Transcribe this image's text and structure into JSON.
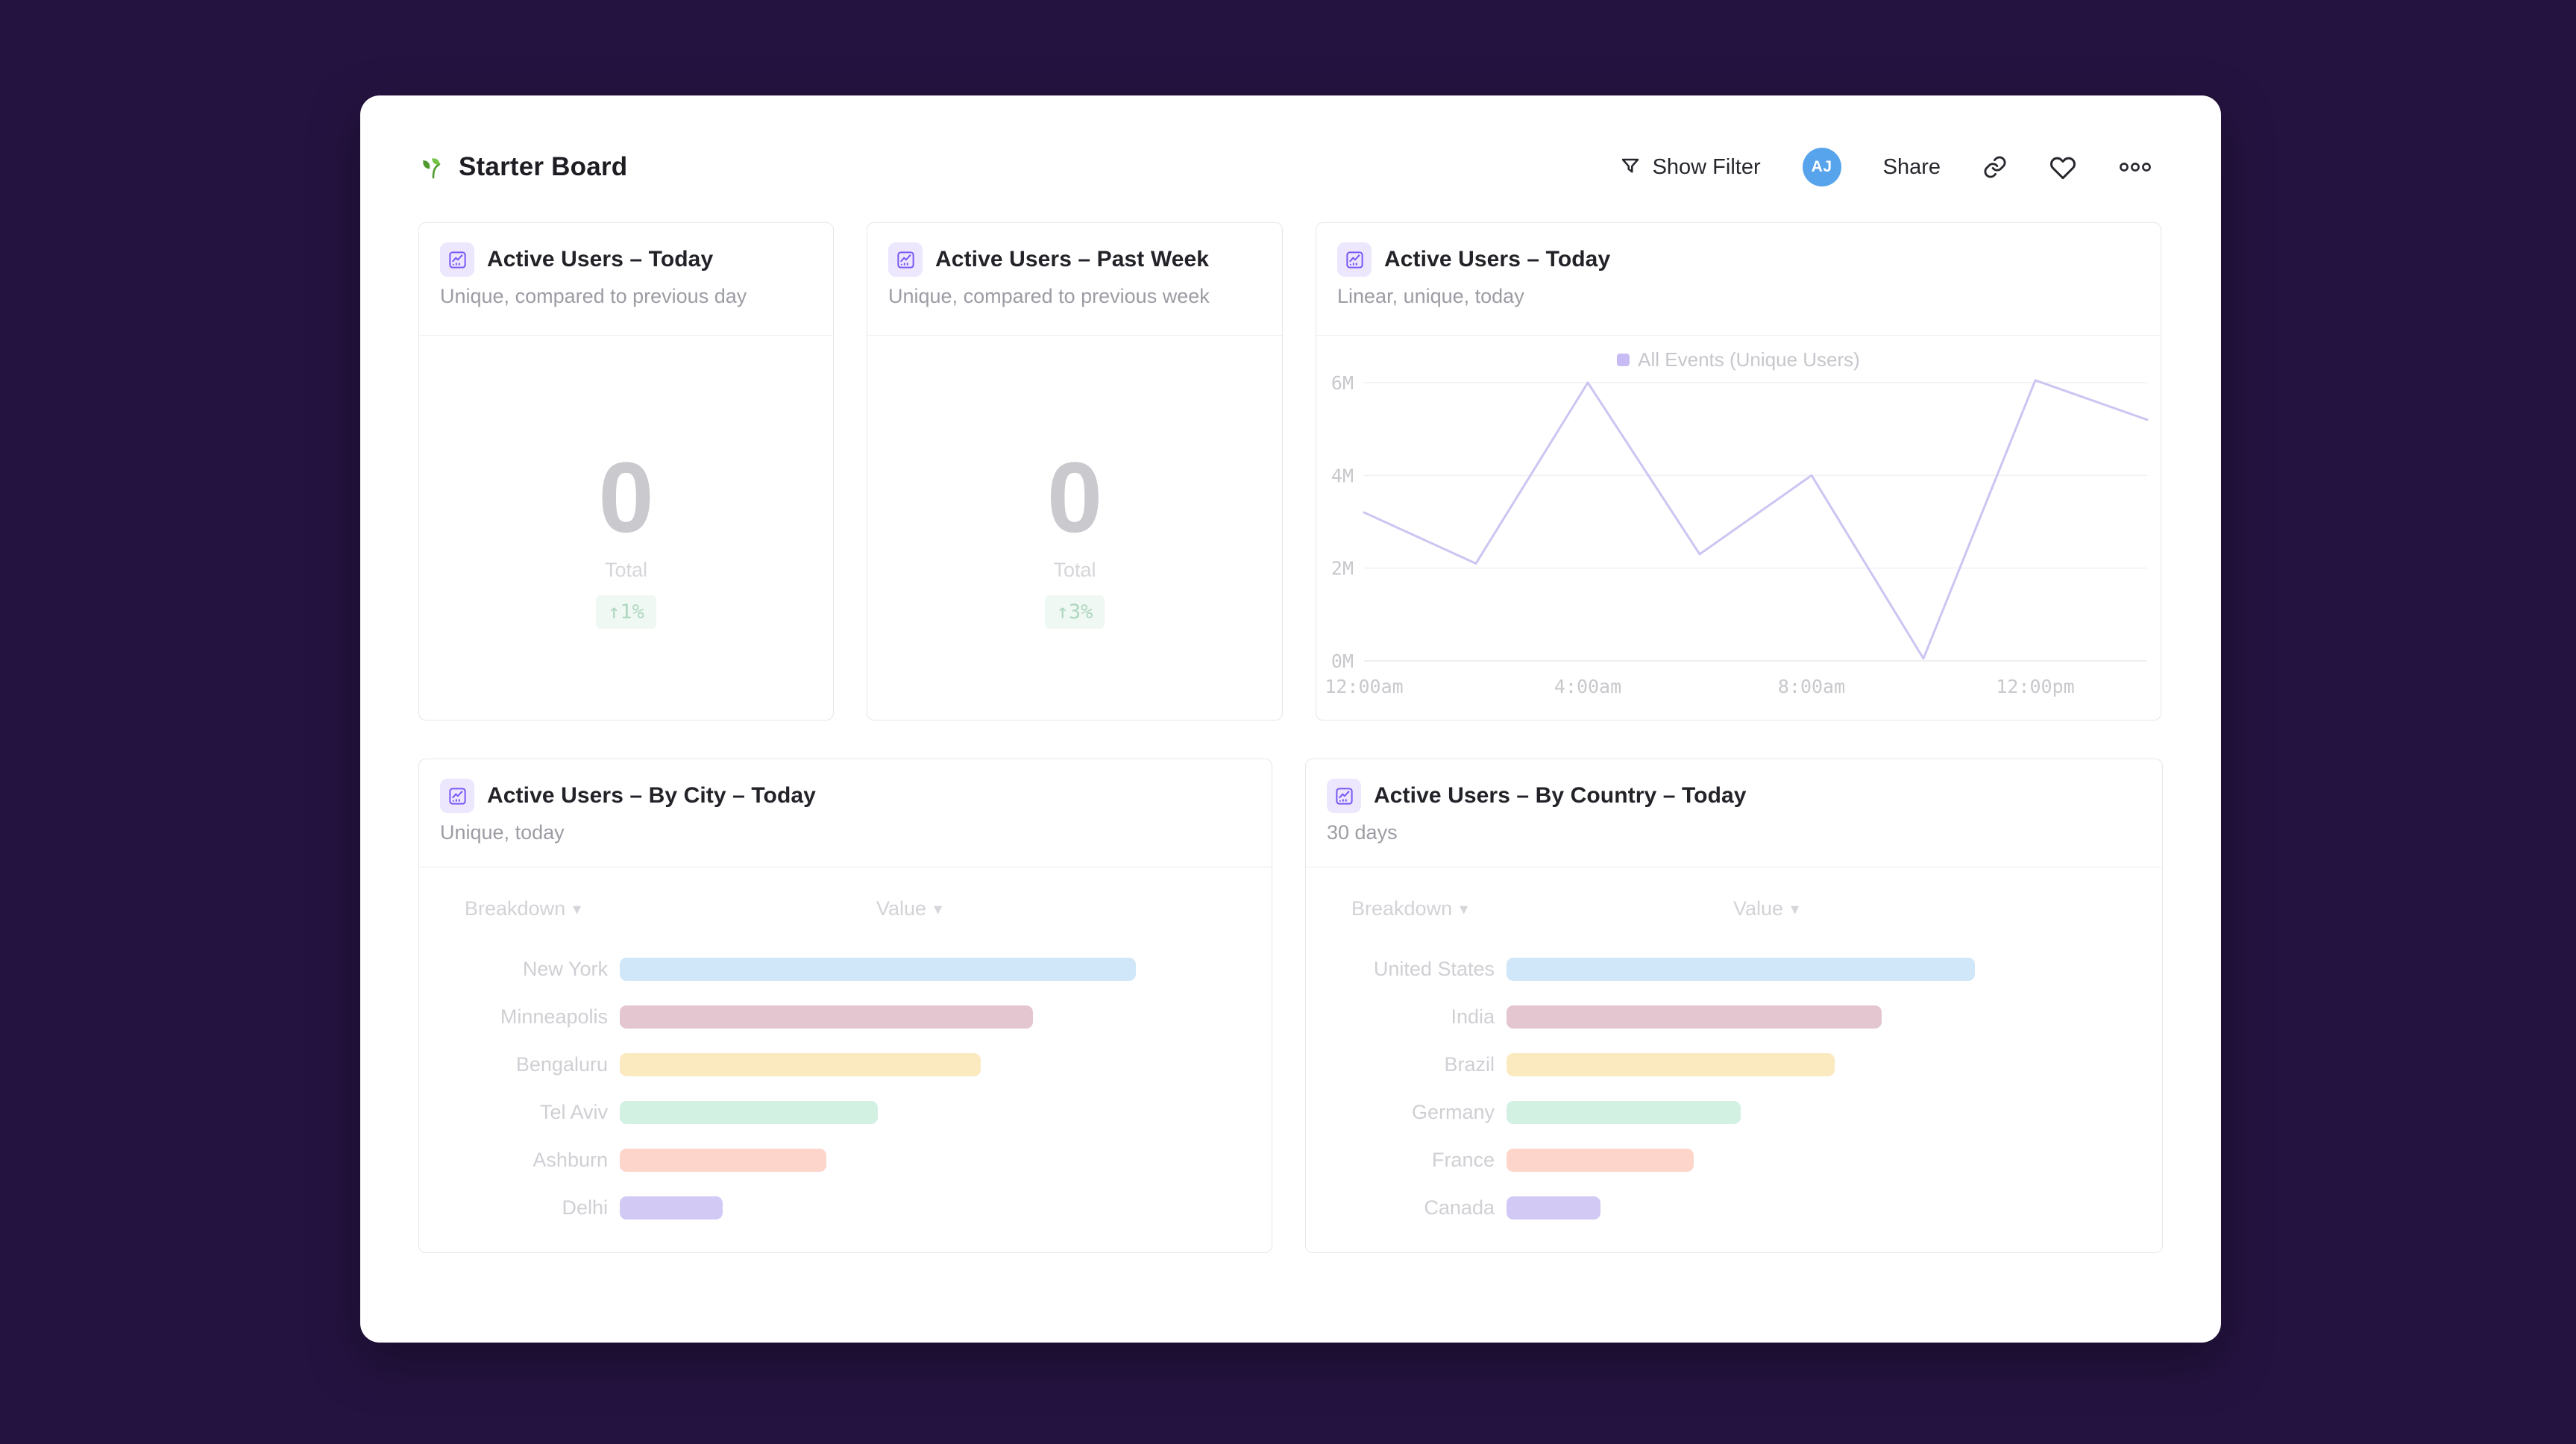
{
  "colors": {
    "page_bg": "#241340",
    "accent_purple": "#7a58f5",
    "line": "#ccc5f2",
    "legend_swatch": "#c9bcf4",
    "grid_line": "#f1f1f4",
    "axis_label": "#c8c8cd",
    "bar_palette": [
      "#cfe7f8",
      "#e4c6d1",
      "#fbe9c0",
      "#d3f1e2",
      "#fdd5ca",
      "#d2c9f5"
    ],
    "delta_bg": "#f0f8f3",
    "delta_text": "#aed7bf",
    "avatar_bg": "#58a4ec"
  },
  "header": {
    "title": "Starter Board",
    "show_filter_label": "Show Filter",
    "avatar_initials": "AJ",
    "share_label": "Share"
  },
  "table": {
    "breakdown_label": "Breakdown",
    "value_label": "Value",
    "sort_arrow": "▾"
  },
  "cards": {
    "today": {
      "title": "Active Users – Today",
      "subtitle": "Unique, compared to previous day",
      "value": "0",
      "value_label": "Total",
      "delta": "↑1%"
    },
    "past_week": {
      "title": "Active Users – Past Week",
      "subtitle": "Unique, compared to previous week",
      "value": "0",
      "value_label": "Total",
      "delta": "↑3%"
    },
    "line": {
      "title": "Active Users – Today",
      "subtitle": "Linear, unique, today"
    },
    "by_city": {
      "title": "Active Users – By City – Today",
      "subtitle": "Unique, today"
    },
    "by_country": {
      "title": "Active Users – By Country – Today",
      "subtitle": "30 days"
    }
  },
  "chart_data": [
    {
      "type": "line",
      "title": "Active Users – Today",
      "x": [
        "12:00am",
        "2:00am",
        "4:00am",
        "6:00am",
        "8:00am",
        "10:00am",
        "12:00pm",
        "2:00pm"
      ],
      "series": [
        {
          "name": "All Events (Unique Users)",
          "values_millions": [
            3.2,
            2.1,
            6.0,
            2.3,
            4.0,
            0.05,
            6.05,
            5.2
          ]
        }
      ],
      "y_ticks_millions": [
        0,
        2,
        4,
        6
      ],
      "y_tick_labels": [
        "0M",
        "2M",
        "4M",
        "6M"
      ],
      "x_tick_labels": [
        "12:00am",
        "4:00am",
        "8:00am",
        "12:00pm"
      ],
      "ylim_millions": [
        0,
        6.1
      ],
      "grid": "horizontal",
      "legend_position": "top-center"
    },
    {
      "type": "bar",
      "orientation": "horizontal",
      "title": "Active Users – By City – Today",
      "categories": [
        "New York",
        "Minneapolis",
        "Bengaluru",
        "Tel Aviv",
        "Ashburn",
        "Delhi"
      ],
      "values_relative": [
        100,
        80,
        70,
        50,
        40,
        20
      ],
      "max_bar_fraction": 0.82
    },
    {
      "type": "bar",
      "orientation": "horizontal",
      "title": "Active Users – By Country – Today",
      "categories": [
        "United States",
        "India",
        "Brazil",
        "Germany",
        "France",
        "Canada"
      ],
      "values_relative": [
        100,
        80,
        70,
        50,
        40,
        20
      ],
      "max_bar_fraction": 0.74
    }
  ]
}
